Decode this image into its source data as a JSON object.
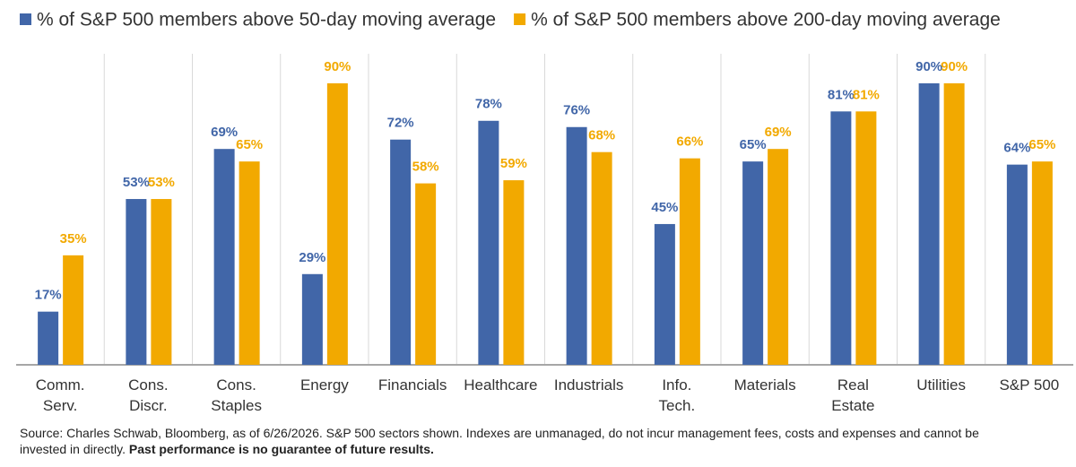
{
  "chart_data": {
    "type": "bar",
    "categories": [
      "Comm.\nServ.",
      "Cons.\nDiscr.",
      "Cons.\nStaples",
      "Energy",
      "Financials",
      "Healthcare",
      "Industrials",
      "Info.\nTech.",
      "Materials",
      "Real\nEstate",
      "Utilities",
      "S&P 500"
    ],
    "series": [
      {
        "name": "% of S&P 500 members above 50-day moving average",
        "color": "#4166a8",
        "values": [
          17,
          53,
          69,
          29,
          72,
          78,
          76,
          45,
          65,
          81,
          90,
          64
        ],
        "value_labels": [
          "17%",
          "53%",
          "69%",
          "29%",
          "72%",
          "78%",
          "76%",
          "45%",
          "65%",
          "81%",
          "90%",
          "64%"
        ]
      },
      {
        "name": "% of S&P 500 members above 200-day moving average",
        "color": "#f2a900",
        "values": [
          35,
          53,
          65,
          90,
          58,
          59,
          68,
          66,
          69,
          81,
          90,
          65
        ],
        "value_labels": [
          "35%",
          "53%",
          "65%",
          "90%",
          "58%",
          "59%",
          "68%",
          "66%",
          "69%",
          "81%",
          "90%",
          "65%"
        ]
      }
    ],
    "ylim": [
      0,
      100
    ],
    "source": "Source: Charles Schwab, Bloomberg, as of 6/26/2026. S&P 500 sectors shown. Indexes are unmanaged, do not incur management fees, costs and expenses and cannot be invested in directly.",
    "disclaimer": "Past performance is no guarantee of future results."
  }
}
